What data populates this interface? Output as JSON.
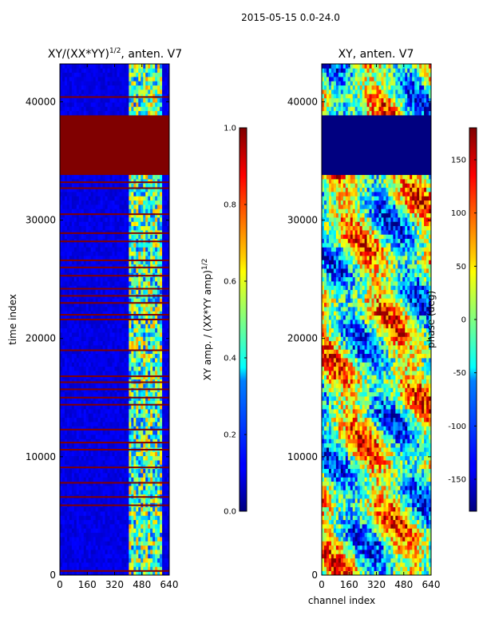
{
  "chart_data": {
    "suptitle": "2015-05-15 0.0-24.0",
    "shared_xlabel": "channel index",
    "panels": [
      {
        "type": "heatmap",
        "title_main": "XY/(XX*YY)",
        "title_sup": "1/2",
        "title_tail": ", anten. V7",
        "ylabel": "time index",
        "xlim": [
          0,
          640
        ],
        "ylim": [
          0,
          43200
        ],
        "x_ticks": [
          "0",
          "160",
          "320",
          "480",
          "640"
        ],
        "y_ticks": [
          "0",
          "10000",
          "20000",
          "30000",
          "40000"
        ],
        "colormap": "jet",
        "colorbar": {
          "label_main": "XY amp. / (XX*YY amp)",
          "label_sup": "1/2",
          "range": [
            0.0,
            1.0
          ],
          "ticks": [
            "0.0",
            "0.2",
            "0.4",
            "0.6",
            "0.8",
            "1.0"
          ]
        },
        "features": {
          "saturated_band_time": [
            33700,
            38800
          ],
          "active_channel_range": [
            410,
            600
          ],
          "low_level_channel_range": [
            0,
            410
          ],
          "flagged_rows_time": [
            350,
            5900,
            6600,
            7800,
            9100,
            10600,
            11200,
            12300,
            14400,
            15000,
            15700,
            16300,
            16800,
            19000,
            21600,
            22000,
            23000,
            23600,
            24200,
            25300,
            26000,
            26600,
            28200,
            28900,
            30500,
            32700,
            33200,
            40400
          ]
        }
      },
      {
        "type": "heatmap",
        "title_main": "XY, anten. V7",
        "xlim": [
          0,
          640
        ],
        "ylim": [
          0,
          43200
        ],
        "x_ticks": [
          "0",
          "160",
          "320",
          "480",
          "640"
        ],
        "y_ticks": [
          "0",
          "10000",
          "20000",
          "30000",
          "40000"
        ],
        "colormap": "jet",
        "colorbar": {
          "label": "phase (deg)",
          "range": [
            -180,
            180
          ],
          "ticks": [
            "-150",
            "-100",
            "-50",
            "0",
            "50",
            "100",
            "150"
          ]
        },
        "features": {
          "masked_band_time": [
            33700,
            38800
          ],
          "description": "phase varies smoothly across channels and time"
        }
      }
    ]
  }
}
